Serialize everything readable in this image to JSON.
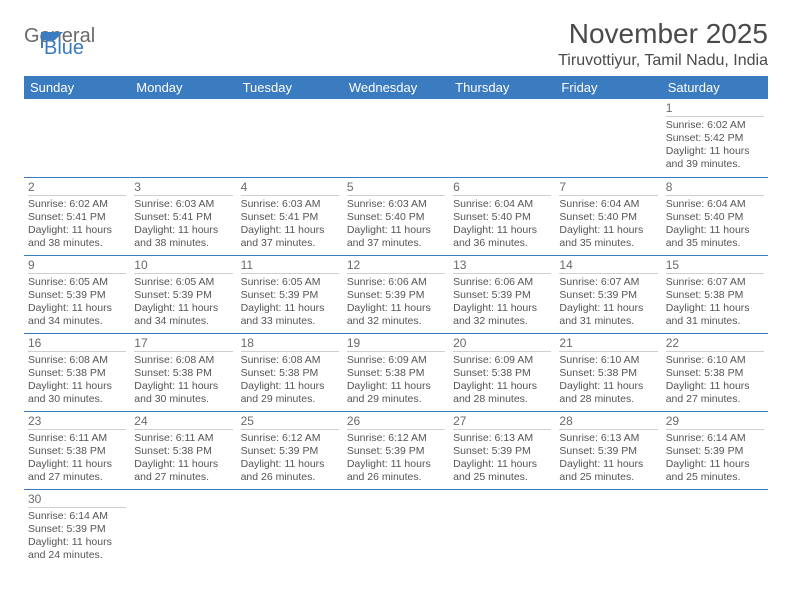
{
  "logo": {
    "word1": "General",
    "word2": "Blue"
  },
  "title": "November 2025",
  "location": "Tiruvottiyur, Tamil Nadu, India",
  "colors": {
    "header_bg": "#3b7bbf",
    "header_text": "#ffffff",
    "row_border": "#3b7bbf",
    "daynum_border": "#cfcfcf",
    "text": "#555555",
    "title_color": "#4a4a4a"
  },
  "columns": [
    "Sunday",
    "Monday",
    "Tuesday",
    "Wednesday",
    "Thursday",
    "Friday",
    "Saturday"
  ],
  "first_weekday_index": 6,
  "days": [
    {
      "n": 1,
      "sr": "6:02 AM",
      "ss": "5:42 PM",
      "dl": "11 hours and 39 minutes."
    },
    {
      "n": 2,
      "sr": "6:02 AM",
      "ss": "5:41 PM",
      "dl": "11 hours and 38 minutes."
    },
    {
      "n": 3,
      "sr": "6:03 AM",
      "ss": "5:41 PM",
      "dl": "11 hours and 38 minutes."
    },
    {
      "n": 4,
      "sr": "6:03 AM",
      "ss": "5:41 PM",
      "dl": "11 hours and 37 minutes."
    },
    {
      "n": 5,
      "sr": "6:03 AM",
      "ss": "5:40 PM",
      "dl": "11 hours and 37 minutes."
    },
    {
      "n": 6,
      "sr": "6:04 AM",
      "ss": "5:40 PM",
      "dl": "11 hours and 36 minutes."
    },
    {
      "n": 7,
      "sr": "6:04 AM",
      "ss": "5:40 PM",
      "dl": "11 hours and 35 minutes."
    },
    {
      "n": 8,
      "sr": "6:04 AM",
      "ss": "5:40 PM",
      "dl": "11 hours and 35 minutes."
    },
    {
      "n": 9,
      "sr": "6:05 AM",
      "ss": "5:39 PM",
      "dl": "11 hours and 34 minutes."
    },
    {
      "n": 10,
      "sr": "6:05 AM",
      "ss": "5:39 PM",
      "dl": "11 hours and 34 minutes."
    },
    {
      "n": 11,
      "sr": "6:05 AM",
      "ss": "5:39 PM",
      "dl": "11 hours and 33 minutes."
    },
    {
      "n": 12,
      "sr": "6:06 AM",
      "ss": "5:39 PM",
      "dl": "11 hours and 32 minutes."
    },
    {
      "n": 13,
      "sr": "6:06 AM",
      "ss": "5:39 PM",
      "dl": "11 hours and 32 minutes."
    },
    {
      "n": 14,
      "sr": "6:07 AM",
      "ss": "5:39 PM",
      "dl": "11 hours and 31 minutes."
    },
    {
      "n": 15,
      "sr": "6:07 AM",
      "ss": "5:38 PM",
      "dl": "11 hours and 31 minutes."
    },
    {
      "n": 16,
      "sr": "6:08 AM",
      "ss": "5:38 PM",
      "dl": "11 hours and 30 minutes."
    },
    {
      "n": 17,
      "sr": "6:08 AM",
      "ss": "5:38 PM",
      "dl": "11 hours and 30 minutes."
    },
    {
      "n": 18,
      "sr": "6:08 AM",
      "ss": "5:38 PM",
      "dl": "11 hours and 29 minutes."
    },
    {
      "n": 19,
      "sr": "6:09 AM",
      "ss": "5:38 PM",
      "dl": "11 hours and 29 minutes."
    },
    {
      "n": 20,
      "sr": "6:09 AM",
      "ss": "5:38 PM",
      "dl": "11 hours and 28 minutes."
    },
    {
      "n": 21,
      "sr": "6:10 AM",
      "ss": "5:38 PM",
      "dl": "11 hours and 28 minutes."
    },
    {
      "n": 22,
      "sr": "6:10 AM",
      "ss": "5:38 PM",
      "dl": "11 hours and 27 minutes."
    },
    {
      "n": 23,
      "sr": "6:11 AM",
      "ss": "5:38 PM",
      "dl": "11 hours and 27 minutes."
    },
    {
      "n": 24,
      "sr": "6:11 AM",
      "ss": "5:38 PM",
      "dl": "11 hours and 27 minutes."
    },
    {
      "n": 25,
      "sr": "6:12 AM",
      "ss": "5:39 PM",
      "dl": "11 hours and 26 minutes."
    },
    {
      "n": 26,
      "sr": "6:12 AM",
      "ss": "5:39 PM",
      "dl": "11 hours and 26 minutes."
    },
    {
      "n": 27,
      "sr": "6:13 AM",
      "ss": "5:39 PM",
      "dl": "11 hours and 25 minutes."
    },
    {
      "n": 28,
      "sr": "6:13 AM",
      "ss": "5:39 PM",
      "dl": "11 hours and 25 minutes."
    },
    {
      "n": 29,
      "sr": "6:14 AM",
      "ss": "5:39 PM",
      "dl": "11 hours and 25 minutes."
    },
    {
      "n": 30,
      "sr": "6:14 AM",
      "ss": "5:39 PM",
      "dl": "11 hours and 24 minutes."
    }
  ],
  "labels": {
    "sunrise": "Sunrise:",
    "sunset": "Sunset:",
    "daylight": "Daylight:"
  }
}
